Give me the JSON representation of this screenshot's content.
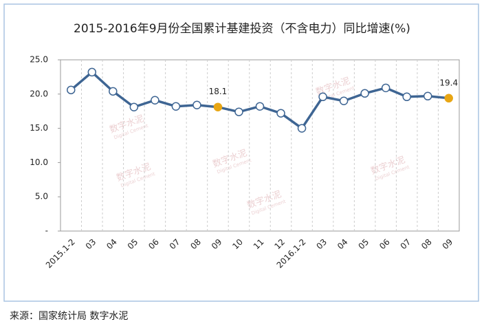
{
  "chart_data": {
    "type": "line",
    "title": "2015-2016年9月份全国累计基建投资（不含电力）同比增速(%)",
    "categories": [
      "2015.1-2",
      "03",
      "04",
      "05",
      "06",
      "07",
      "08",
      "09",
      "10",
      "11",
      "12",
      "2016.1-2",
      "03",
      "04",
      "05",
      "06",
      "07",
      "08",
      "09"
    ],
    "values": [
      20.6,
      23.2,
      20.4,
      18.1,
      19.1,
      18.2,
      18.4,
      18.1,
      17.4,
      18.2,
      17.2,
      15.0,
      19.6,
      19.0,
      20.1,
      20.9,
      19.6,
      19.7,
      19.4
    ],
    "color": "#3e6593",
    "highlight_indices": [
      7,
      18
    ],
    "highlight_color": "#e8a614",
    "ylim": [
      0,
      25
    ],
    "yticks": [
      {
        "value": 0,
        "label": "-"
      },
      {
        "value": 5,
        "label": "5.0"
      },
      {
        "value": 10,
        "label": "10.0"
      },
      {
        "value": 15,
        "label": "15.0"
      },
      {
        "value": 20,
        "label": "20.0"
      },
      {
        "value": 25,
        "label": "25.0"
      }
    ],
    "source": "来源：国家统计局  数字水泥",
    "watermark": "数字水泥",
    "watermark_sub": "Digital Cement"
  }
}
